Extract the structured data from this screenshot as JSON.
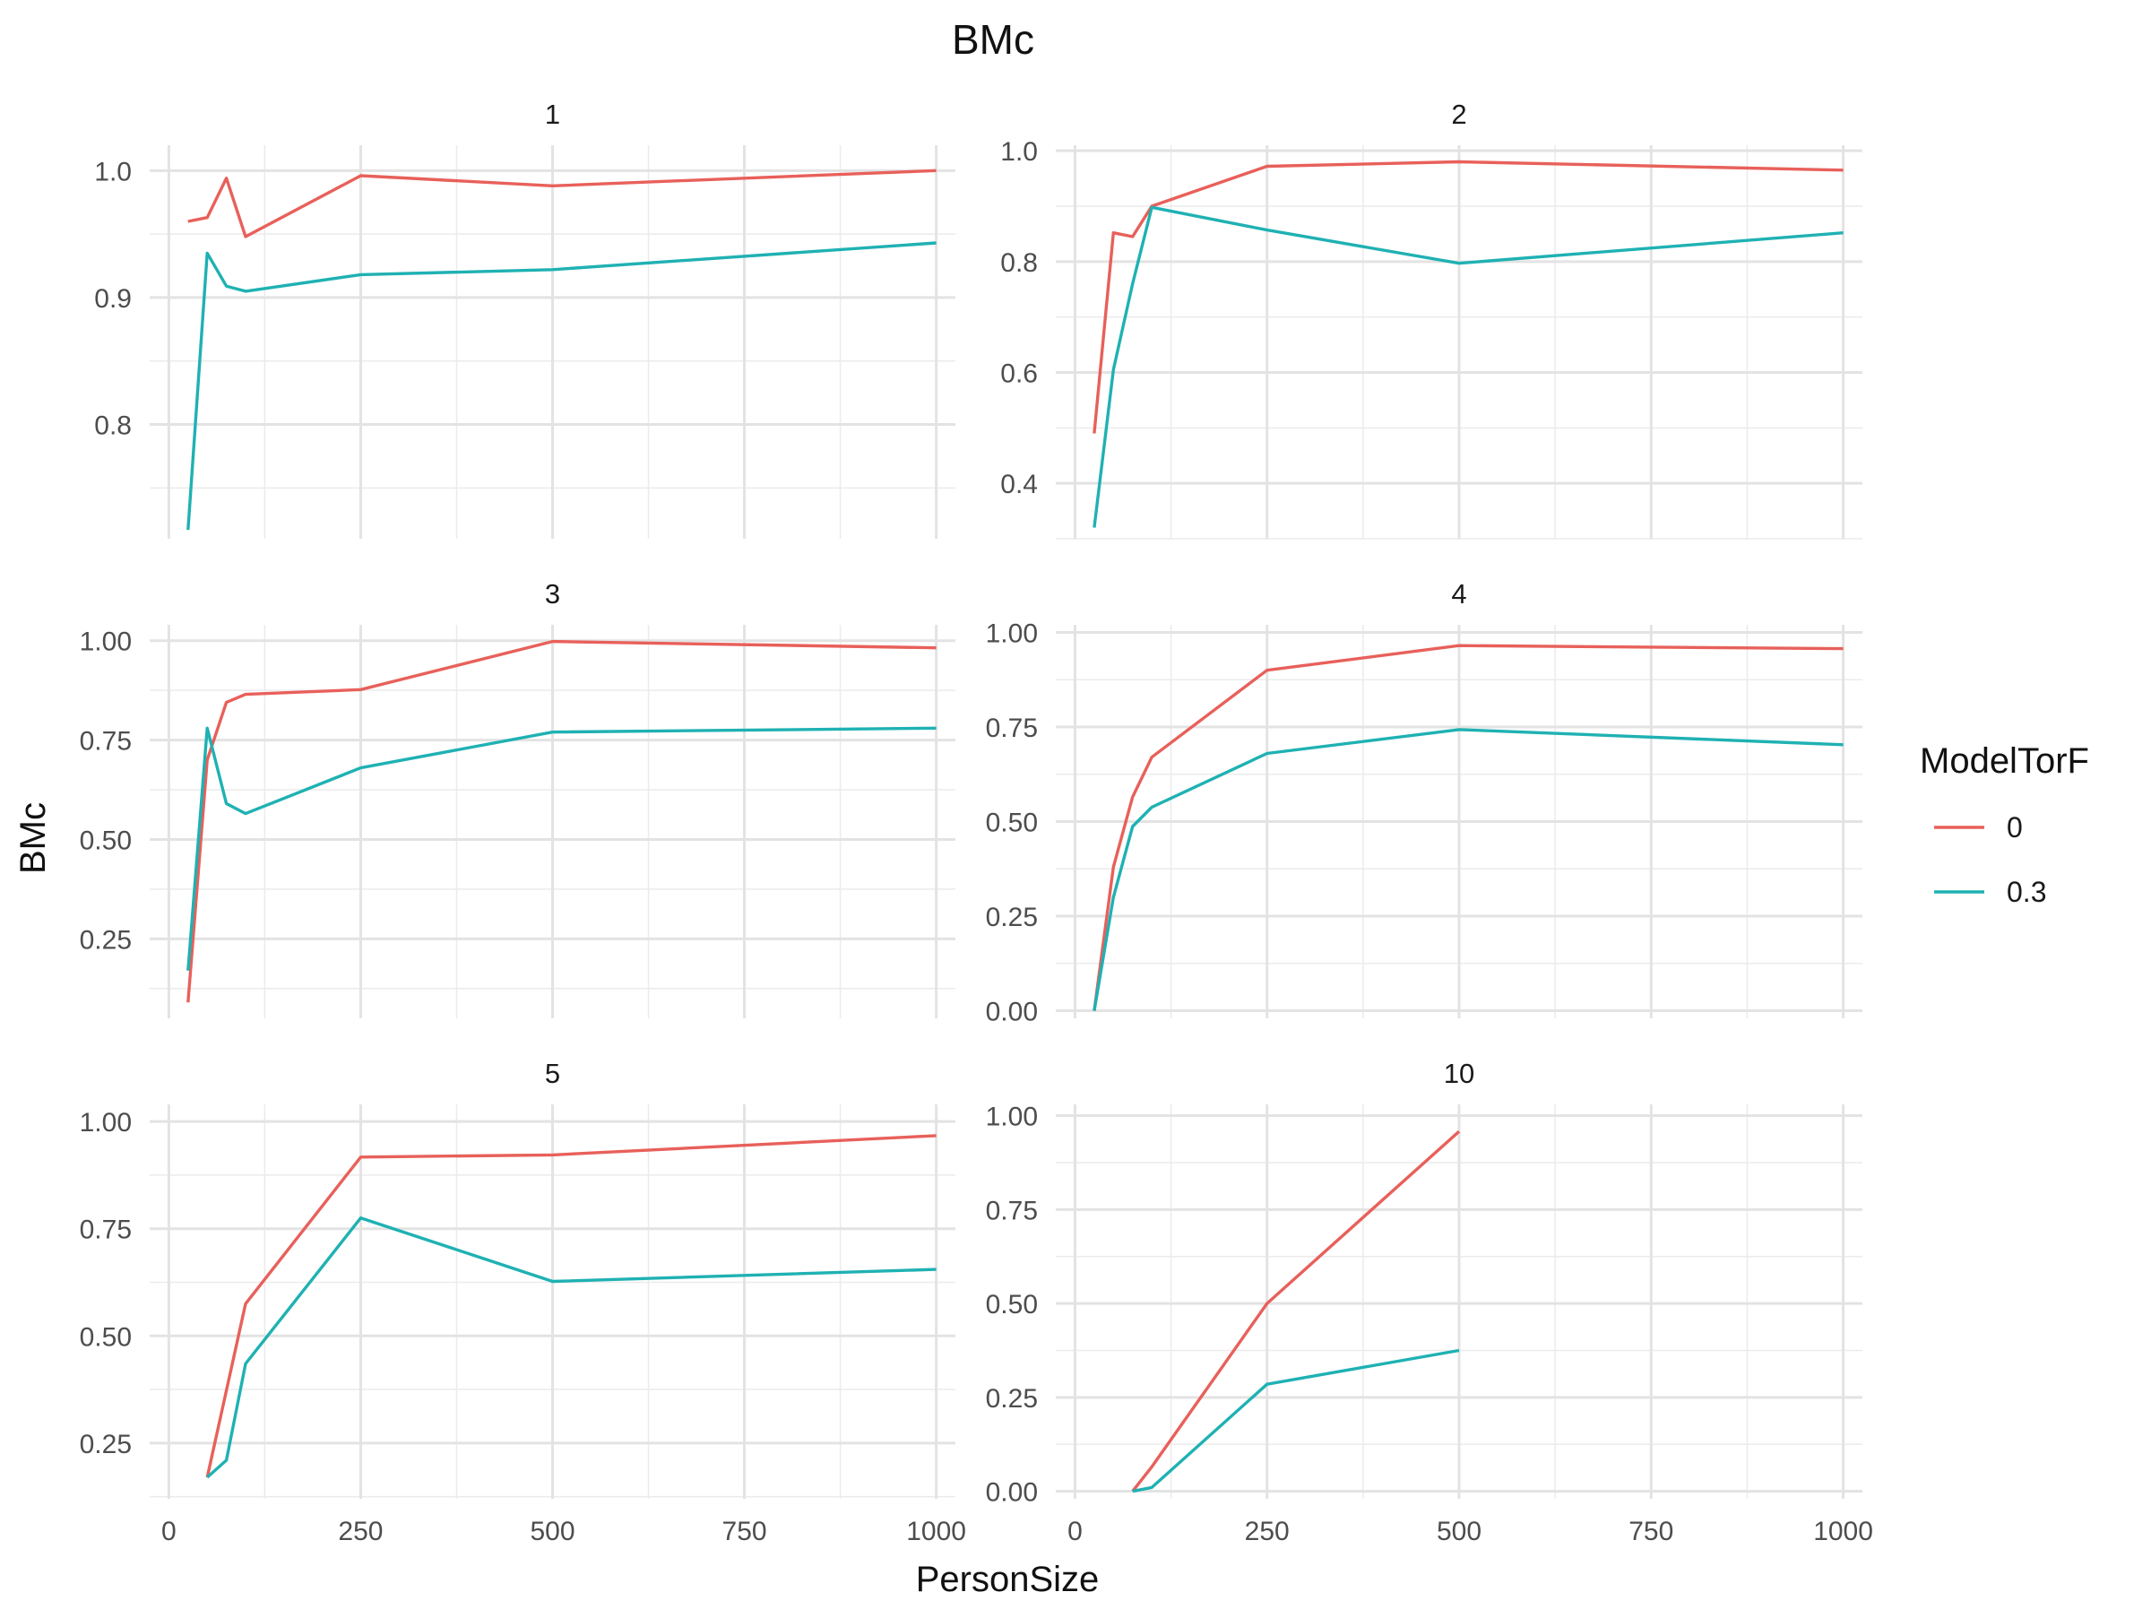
{
  "chart_data": {
    "type": "line",
    "title": "BMc",
    "xlabel": "PersonSize",
    "ylabel": "BMc",
    "legend": {
      "title": "ModelTorF",
      "position": "right",
      "entries": [
        {
          "label": "0",
          "color": "#E8605A"
        },
        {
          "label": "0.3",
          "color": "#1FB1B3"
        }
      ]
    },
    "grid": true,
    "x_ticks": [
      0,
      250,
      500,
      750,
      1000
    ],
    "x_tick_labels": [
      "0",
      "250",
      "500",
      "750",
      "1000"
    ],
    "xlim": [
      -25,
      1025
    ],
    "facets": [
      {
        "label": "1",
        "ylim": [
          0.71,
          1.02
        ],
        "y_ticks": [
          0.8,
          0.9,
          1.0
        ],
        "y_tick_labels": [
          "0.8",
          "0.9",
          "1.0"
        ],
        "series": [
          {
            "name": "0",
            "x": [
              25,
              50,
              75,
              100,
              250,
              500,
              1000
            ],
            "y": [
              0.96,
              0.963,
              0.994,
              0.948,
              0.996,
              0.988,
              1.0
            ]
          },
          {
            "name": "0.3",
            "x": [
              25,
              50,
              75,
              100,
              250,
              500,
              1000
            ],
            "y": [
              0.717,
              0.935,
              0.909,
              0.905,
              0.918,
              0.922,
              0.943
            ]
          }
        ]
      },
      {
        "label": "2",
        "ylim": [
          0.3,
          1.01
        ],
        "y_ticks": [
          0.4,
          0.6,
          0.8,
          1.0
        ],
        "y_tick_labels": [
          "0.4",
          "0.6",
          "0.8",
          "1.0"
        ],
        "series": [
          {
            "name": "0",
            "x": [
              25,
              50,
              75,
              100,
              250,
              500,
              1000
            ],
            "y": [
              0.49,
              0.852,
              0.845,
              0.9,
              0.972,
              0.98,
              0.965
            ]
          },
          {
            "name": "0.3",
            "x": [
              25,
              50,
              75,
              100,
              250,
              500,
              1000
            ],
            "y": [
              0.32,
              0.605,
              0.76,
              0.898,
              0.857,
              0.797,
              0.852
            ]
          }
        ]
      },
      {
        "label": "3",
        "ylim": [
          0.05,
          1.04
        ],
        "y_ticks": [
          0.25,
          0.5,
          0.75,
          1.0
        ],
        "y_tick_labels": [
          "0.25",
          "0.50",
          "0.75",
          "1.00"
        ],
        "series": [
          {
            "name": "0",
            "x": [
              25,
              50,
              75,
              100,
              250,
              500,
              1000
            ],
            "y": [
              0.09,
              0.7,
              0.845,
              0.865,
              0.877,
              0.998,
              0.982
            ]
          },
          {
            "name": "0.3",
            "x": [
              25,
              50,
              75,
              100,
              250,
              500,
              1000
            ],
            "y": [
              0.17,
              0.78,
              0.59,
              0.565,
              0.68,
              0.77,
              0.78
            ]
          }
        ]
      },
      {
        "label": "4",
        "ylim": [
          -0.02,
          1.02
        ],
        "y_ticks": [
          0.0,
          0.25,
          0.5,
          0.75,
          1.0
        ],
        "y_tick_labels": [
          "0.00",
          "0.25",
          "0.50",
          "0.75",
          "1.00"
        ],
        "series": [
          {
            "name": "0",
            "x": [
              25,
              50,
              75,
              100,
              250,
              500,
              1000
            ],
            "y": [
              0.0,
              0.38,
              0.565,
              0.67,
              0.9,
              0.965,
              0.957
            ]
          },
          {
            "name": "0.3",
            "x": [
              25,
              50,
              75,
              100,
              250,
              500,
              1000
            ],
            "y": [
              0.0,
              0.3,
              0.487,
              0.538,
              0.68,
              0.743,
              0.703
            ]
          }
        ]
      },
      {
        "label": "5",
        "ylim": [
          0.12,
          1.04
        ],
        "y_ticks": [
          0.25,
          0.5,
          0.75,
          1.0
        ],
        "y_tick_labels": [
          "0.25",
          "0.50",
          "0.75",
          "1.00"
        ],
        "series": [
          {
            "name": "0",
            "x": [
              50,
              100,
              250,
              500,
              1000
            ],
            "y": [
              0.17,
              0.575,
              0.917,
              0.922,
              0.967
            ]
          },
          {
            "name": "0.3",
            "x": [
              50,
              75,
              100,
              250,
              500,
              1000
            ],
            "y": [
              0.17,
              0.21,
              0.435,
              0.775,
              0.627,
              0.655
            ]
          }
        ]
      },
      {
        "label": "10",
        "ylim": [
          -0.02,
          1.03
        ],
        "y_ticks": [
          0.0,
          0.25,
          0.5,
          0.75,
          1.0
        ],
        "y_tick_labels": [
          "0.00",
          "0.25",
          "0.50",
          "0.75",
          "1.00"
        ],
        "series": [
          {
            "name": "0",
            "x": [
              75,
              100,
              250,
              500
            ],
            "y": [
              0.0,
              0.065,
              0.5,
              0.958
            ]
          },
          {
            "name": "0.3",
            "x": [
              75,
              100,
              250,
              500
            ],
            "y": [
              0.0,
              0.01,
              0.285,
              0.375
            ]
          }
        ]
      }
    ]
  }
}
